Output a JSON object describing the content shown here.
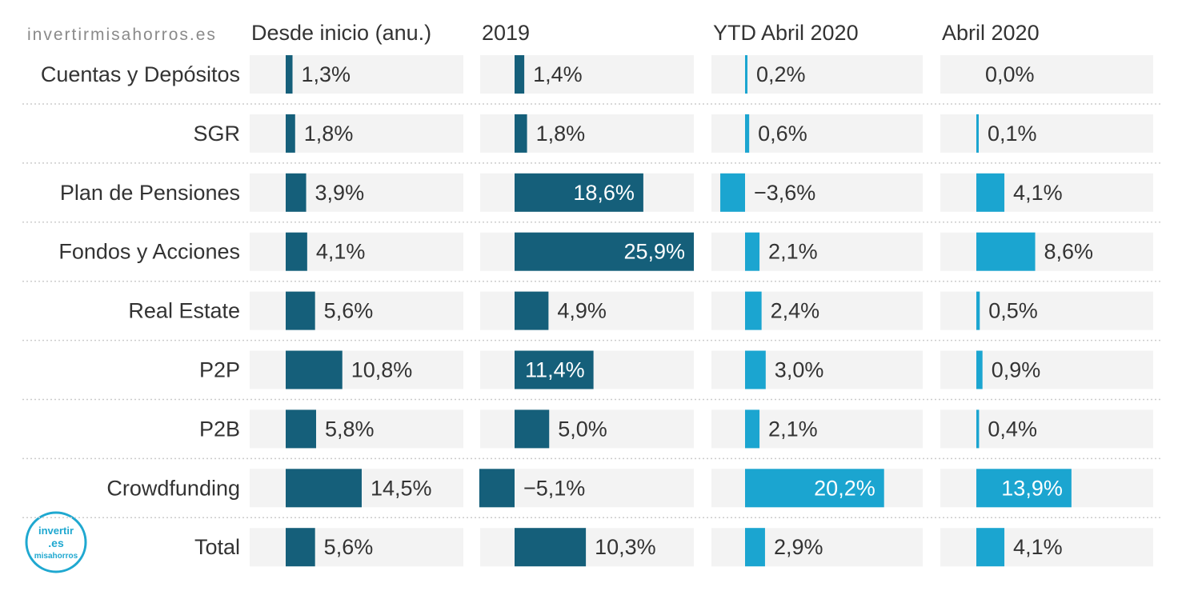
{
  "brand": {
    "site_text": "invertirmisahorros.es",
    "logo_text": [
      "invertir",
      ".es",
      "misahorros"
    ],
    "logo_color": "#1fa8d0"
  },
  "colors": {
    "dark": "#155f7a",
    "light": "#1ba5d0",
    "track": "#f3f3f3",
    "text": "#333333",
    "separator": "#cccccc"
  },
  "chart_data": {
    "type": "bar",
    "orientation": "horizontal",
    "categories": [
      "Cuentas y Depósitos",
      "SGR",
      "Plan de Pensiones",
      "Fondos y Acciones",
      "Real Estate",
      "P2P",
      "P2B",
      "Crowdfunding",
      "Total"
    ],
    "series": [
      {
        "name": "Desde inicio (anu.)",
        "values": [
          1.3,
          1.8,
          3.9,
          4.1,
          5.6,
          10.8,
          5.8,
          14.5,
          5.6
        ],
        "labels": [
          "1,3%",
          "1,8%",
          "3,9%",
          "4,1%",
          "5,6%",
          "10,8%",
          "5,8%",
          "14,5%",
          "5,6%"
        ],
        "color": "#155f7a"
      },
      {
        "name": "2019",
        "values": [
          1.4,
          1.8,
          18.6,
          25.9,
          4.9,
          11.4,
          5.0,
          -5.1,
          10.3
        ],
        "labels": [
          "1,4%",
          "1,8%",
          "18,6%",
          "25,9%",
          "4,9%",
          "11,4%",
          "5,0%",
          "−5,1%",
          "10,3%"
        ],
        "color": "#155f7a"
      },
      {
        "name": "YTD Abril 2020",
        "values": [
          0.2,
          0.6,
          -3.6,
          2.1,
          2.4,
          3.0,
          2.1,
          20.2,
          2.9
        ],
        "labels": [
          "0,2%",
          "0,6%",
          "−3,6%",
          "2,1%",
          "2,4%",
          "3,0%",
          "2,1%",
          "20,2%",
          "2,9%"
        ],
        "color": "#1ba5d0"
      },
      {
        "name": "Abril 2020",
        "values": [
          0.0,
          0.1,
          4.1,
          8.6,
          0.5,
          0.9,
          0.4,
          13.9,
          4.1
        ],
        "labels": [
          "0,0%",
          "0,1%",
          "4,1%",
          "8,6%",
          "0,5%",
          "0,9%",
          "0,4%",
          "13,9%",
          "4,1%"
        ],
        "color": "#1ba5d0"
      }
    ],
    "grid": false,
    "legend": "none"
  }
}
